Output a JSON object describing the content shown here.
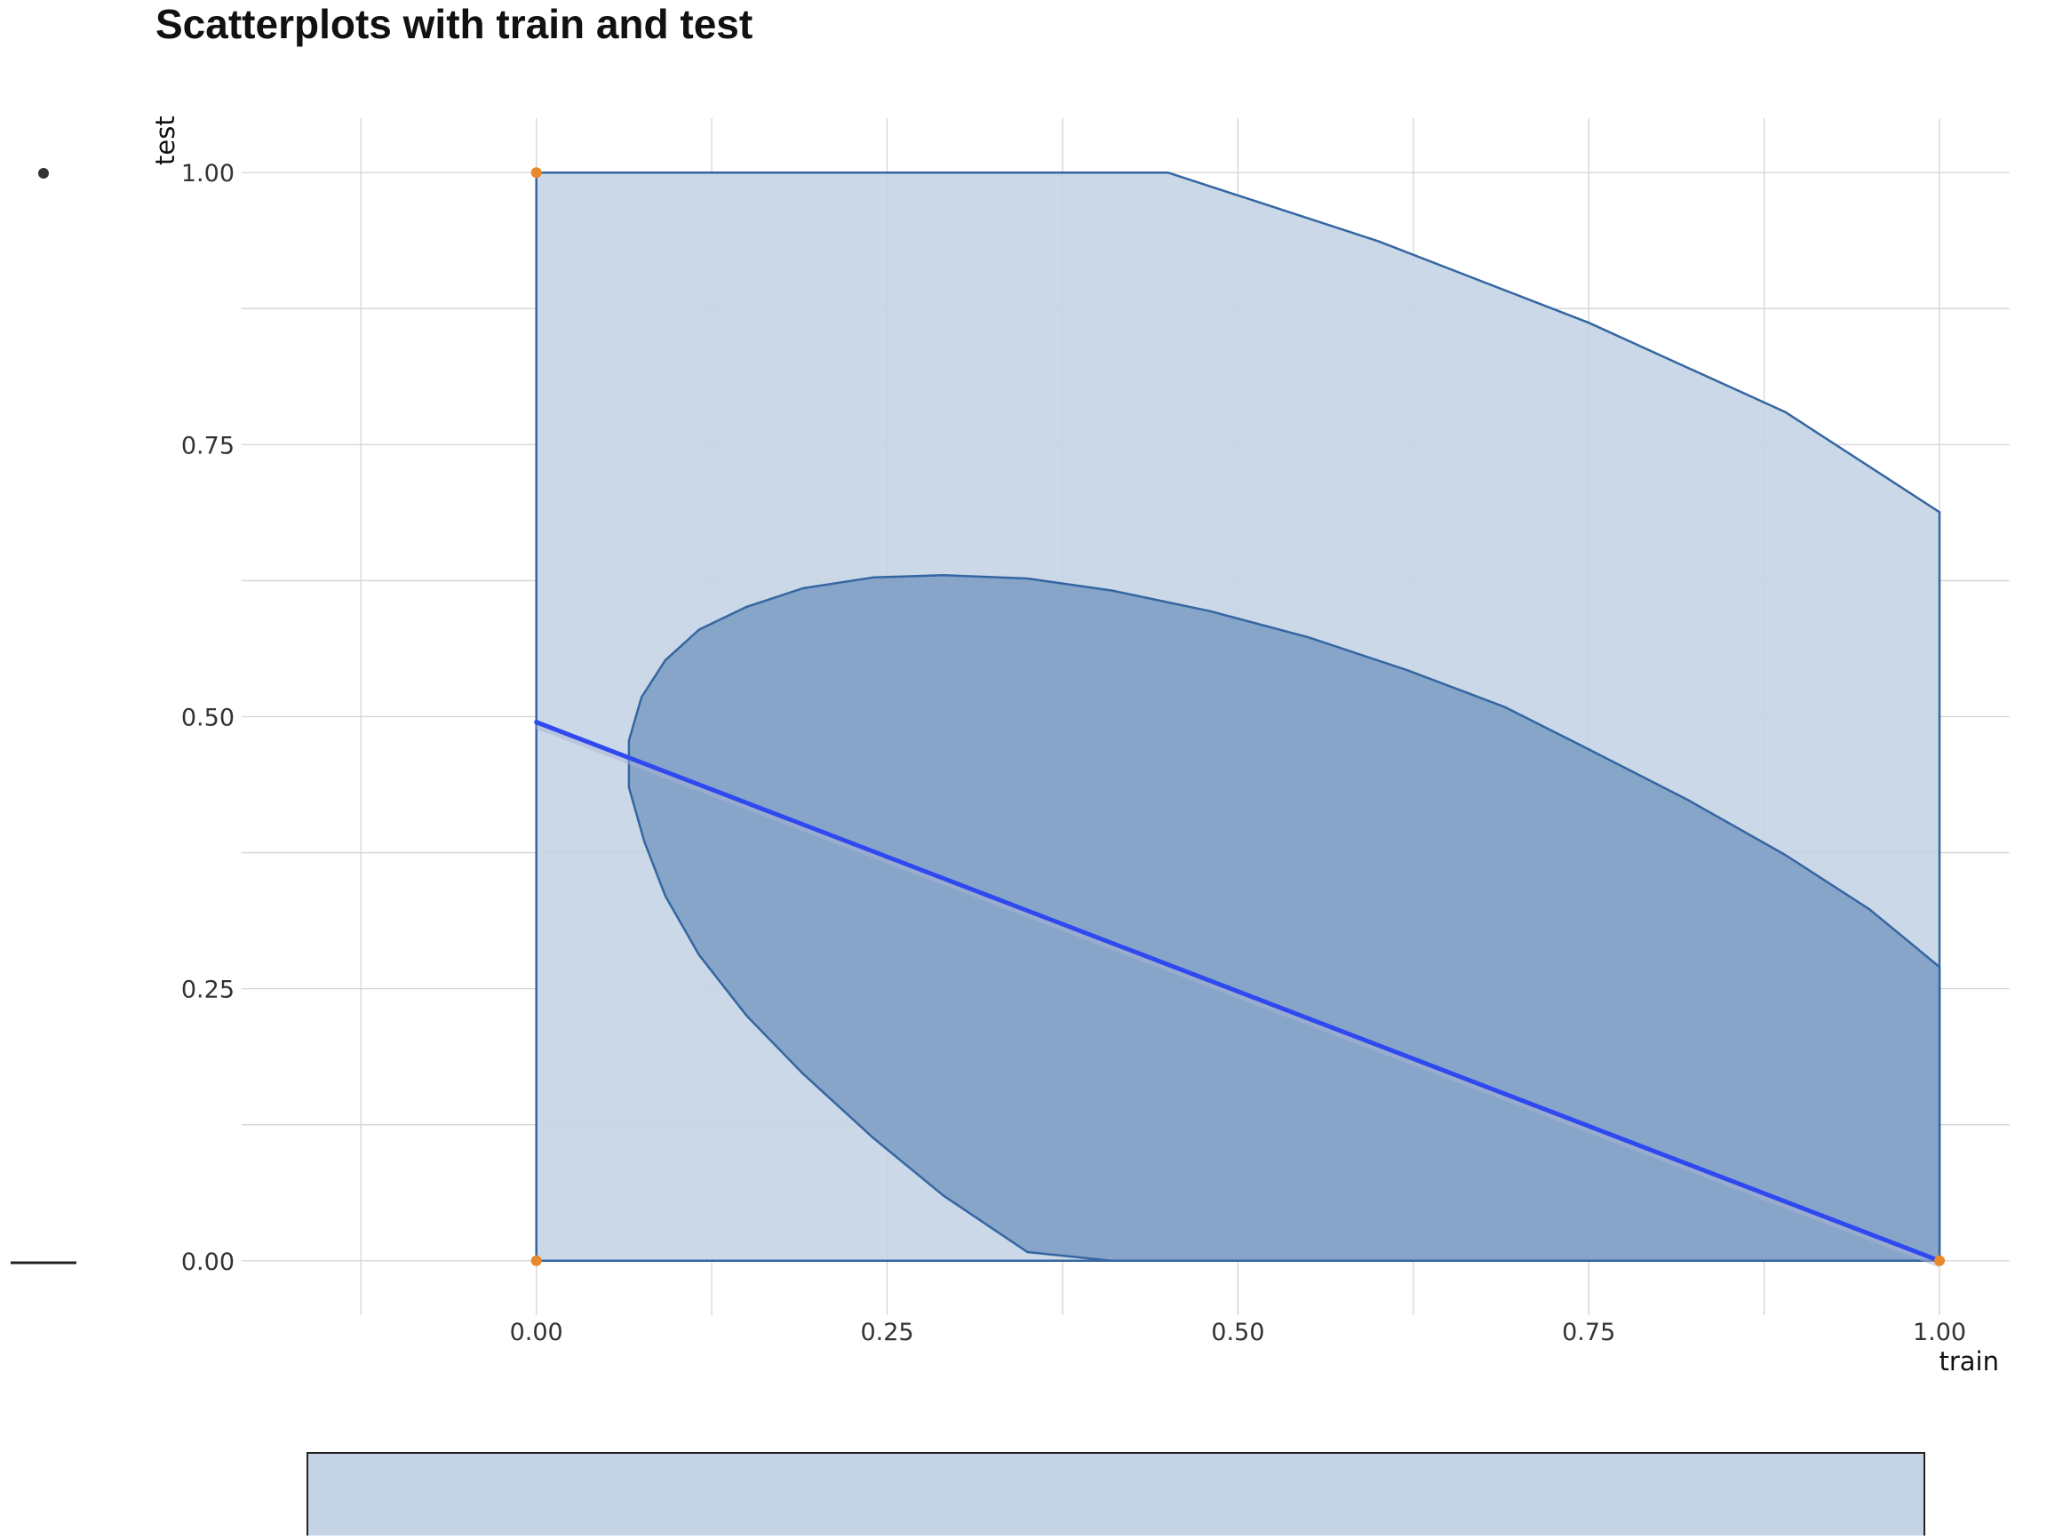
{
  "chart_data": {
    "type": "scatter",
    "title": "Scatterplots with train and test",
    "xlabel": "train",
    "ylabel": "test",
    "xlim": [
      -0.21,
      1.05
    ],
    "ylim": [
      -0.05,
      1.05
    ],
    "x_ticks": [
      "0.00",
      "0.25",
      "0.50",
      "0.75",
      "1.00"
    ],
    "y_ticks": [
      "0.00",
      "0.25",
      "0.50",
      "0.75",
      "1.00"
    ],
    "grid": true,
    "points": [
      {
        "x": 0,
        "y": 1
      },
      {
        "x": 0,
        "y": 0
      },
      {
        "x": 1,
        "y": 0
      }
    ],
    "point_color": "#e8882a",
    "regression_line": {
      "x": [
        0,
        1
      ],
      "y": [
        0.495,
        0.0
      ],
      "color": "#2f48f0"
    },
    "density_outer": {
      "color": "#c4d4e4",
      "stroke": "#3566a2",
      "x": [
        0,
        0,
        0.45,
        0.6,
        0.75,
        0.89,
        1.0,
        1.0,
        0
      ],
      "y": [
        0,
        1,
        1,
        0.937,
        0.862,
        0.78,
        0.688,
        0,
        0
      ]
    },
    "density_inner": {
      "color": "#7ea0c5",
      "stroke": "#3566a2",
      "x": [
        0.35,
        0.29,
        0.24,
        0.19,
        0.15,
        0.116,
        0.092,
        0.077,
        0.066,
        0.066,
        0.075,
        0.092,
        0.116,
        0.15,
        0.19,
        0.24,
        0.29,
        0.35,
        0.41,
        0.48,
        0.55,
        0.62,
        0.69,
        0.75,
        0.82,
        0.89,
        0.95,
        1.0,
        1.0,
        0.41,
        0.35
      ],
      "y": [
        0.008,
        0.06,
        0.113,
        0.172,
        0.225,
        0.281,
        0.335,
        0.385,
        0.435,
        0.478,
        0.518,
        0.552,
        0.58,
        0.601,
        0.618,
        0.628,
        0.63,
        0.627,
        0.616,
        0.597,
        0.573,
        0.543,
        0.509,
        0.47,
        0.424,
        0.373,
        0.323,
        0.27,
        0,
        0,
        0.008
      ]
    },
    "legend": {
      "position": "left"
    },
    "bottom_panel_color": "#c4d4e4"
  }
}
